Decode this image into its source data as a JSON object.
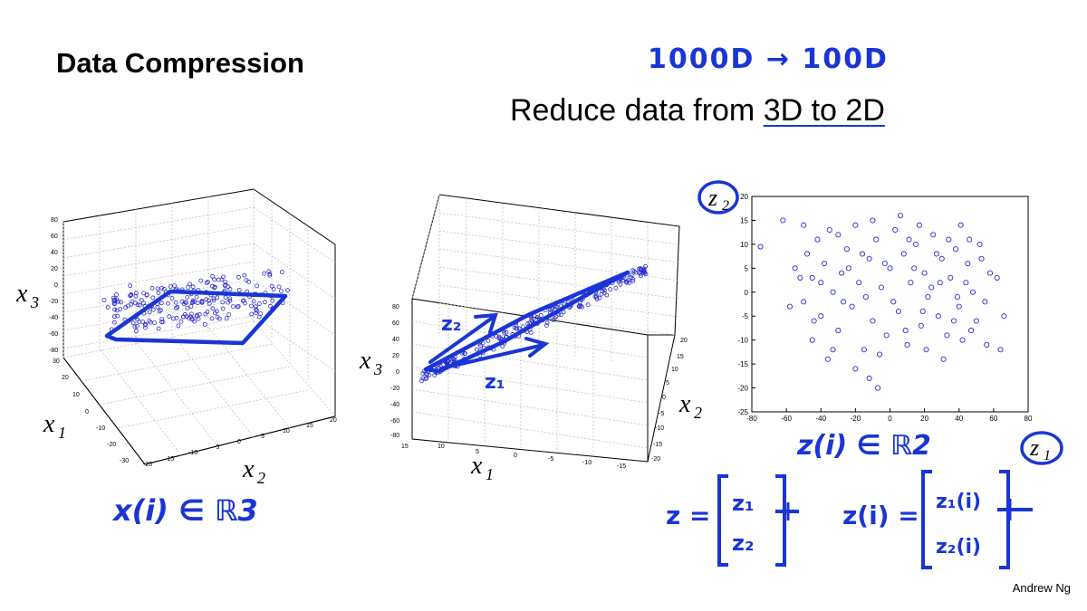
{
  "slide": {
    "title": "Data Compression",
    "subtitle_prefix": "Reduce data from ",
    "subtitle_highlight": "3D to 2D",
    "author": "Andrew Ng",
    "handwritten_note": "1000D → 100D"
  },
  "plot3d_left": {
    "z_ticks": [
      "80",
      "60",
      "40",
      "20",
      "0",
      "-20",
      "-40",
      "-60",
      "-80"
    ],
    "y_ticks": [
      "30",
      "20",
      "10",
      "0",
      "-10",
      "-20",
      "-30"
    ],
    "x_ticks": [
      "-20",
      "-15",
      "-10",
      "-5",
      "0",
      "5",
      "10",
      "15",
      "20"
    ],
    "xlabel_main": "x",
    "xlabel_sub": "3",
    "x1_main": "x",
    "x1_sub": "1",
    "x2_main": "x",
    "x2_sub": "2",
    "annotation": "x(i) ∈ ℝ3"
  },
  "plot3d_middle": {
    "z_ticks": [
      "80",
      "60",
      "40",
      "20",
      "0",
      "-20",
      "-40",
      "-60",
      "-80"
    ],
    "left_ticks": [
      "15",
      "10",
      "5",
      "0",
      "-5",
      "-10",
      "-15"
    ],
    "right_ticks": [
      "20",
      "15",
      "10",
      "5",
      "0",
      "-5",
      "-10",
      "-15",
      "-20"
    ],
    "x3_main": "x",
    "x3_sub": "3",
    "x1_main": "x",
    "x1_sub": "1",
    "x2_main": "x",
    "x2_sub": "2",
    "z1_label": "z₁",
    "z2_label": "z₂"
  },
  "chart_data": {
    "type": "scatter",
    "title": "",
    "xlabel": "z1",
    "ylabel": "z2",
    "xlim": [
      -80,
      80
    ],
    "ylim": [
      -25,
      20
    ],
    "x_ticks": [
      -80,
      -60,
      -40,
      -20,
      0,
      20,
      40,
      60,
      80
    ],
    "y_ticks": [
      -25,
      -20,
      -15,
      -10,
      -5,
      0,
      5,
      10,
      15,
      20
    ],
    "points": [
      [
        -75,
        9.5
      ],
      [
        -62,
        15
      ],
      [
        -55,
        5
      ],
      [
        -50,
        -2
      ],
      [
        -48,
        8
      ],
      [
        -45,
        3
      ],
      [
        -42,
        11
      ],
      [
        -40,
        -5
      ],
      [
        -38,
        6
      ],
      [
        -35,
        13
      ],
      [
        -33,
        0
      ],
      [
        -30,
        -8
      ],
      [
        -28,
        4
      ],
      [
        -25,
        9
      ],
      [
        -22,
        -3
      ],
      [
        -20,
        14
      ],
      [
        -18,
        2
      ],
      [
        -15,
        -12
      ],
      [
        -12,
        7
      ],
      [
        -10,
        -6
      ],
      [
        -8,
        11
      ],
      [
        -5,
        1
      ],
      [
        -2,
        -9
      ],
      [
        0,
        5
      ],
      [
        3,
        13
      ],
      [
        5,
        -4
      ],
      [
        8,
        8
      ],
      [
        10,
        -11
      ],
      [
        12,
        2
      ],
      [
        15,
        10
      ],
      [
        18,
        -7
      ],
      [
        20,
        4
      ],
      [
        22,
        -1
      ],
      [
        25,
        12
      ],
      [
        28,
        -5
      ],
      [
        30,
        7
      ],
      [
        33,
        -9
      ],
      [
        35,
        3
      ],
      [
        38,
        9
      ],
      [
        40,
        -3
      ],
      [
        42,
        -10
      ],
      [
        45,
        6
      ],
      [
        48,
        0
      ],
      [
        50,
        -6
      ],
      [
        52,
        10
      ],
      [
        55,
        -2
      ],
      [
        58,
        4
      ],
      [
        62,
        3
      ],
      [
        64,
        -12
      ],
      [
        66,
        -5
      ],
      [
        -58,
        -3
      ],
      [
        -45,
        -10
      ],
      [
        -40,
        2
      ],
      [
        -36,
        -14
      ],
      [
        -30,
        12
      ],
      [
        -27,
        -2
      ],
      [
        -24,
        5
      ],
      [
        -20,
        -16
      ],
      [
        -16,
        8
      ],
      [
        -14,
        -1
      ],
      [
        -10,
        15
      ],
      [
        -6,
        -13
      ],
      [
        -3,
        6
      ],
      [
        2,
        -2
      ],
      [
        6,
        16
      ],
      [
        9,
        -8
      ],
      [
        14,
        5
      ],
      [
        17,
        14
      ],
      [
        21,
        -12
      ],
      [
        24,
        1
      ],
      [
        27,
        8
      ],
      [
        31,
        -14
      ],
      [
        34,
        11
      ],
      [
        37,
        -6
      ],
      [
        41,
        14
      ],
      [
        44,
        2
      ],
      [
        47,
        -8
      ],
      [
        53,
        7
      ],
      [
        56,
        -11
      ],
      [
        -50,
        14
      ],
      [
        -33,
        -12
      ],
      [
        -12,
        -18
      ],
      [
        -7,
        -20
      ],
      [
        11,
        11
      ],
      [
        19,
        -4
      ],
      [
        29,
        2
      ],
      [
        39,
        -1
      ],
      [
        46,
        11
      ],
      [
        -52,
        3
      ],
      [
        -44,
        -6
      ]
    ],
    "annotation_axis": "z(i) ∈ ℝ2"
  },
  "equations": {
    "eq1_lhs": "z =",
    "eq1_row1": "z₁",
    "eq1_row2": "z₂",
    "eq2_lhs": "z(i) =",
    "eq2_row1": "z₁(i)",
    "eq2_row2": "z₂(i)"
  }
}
